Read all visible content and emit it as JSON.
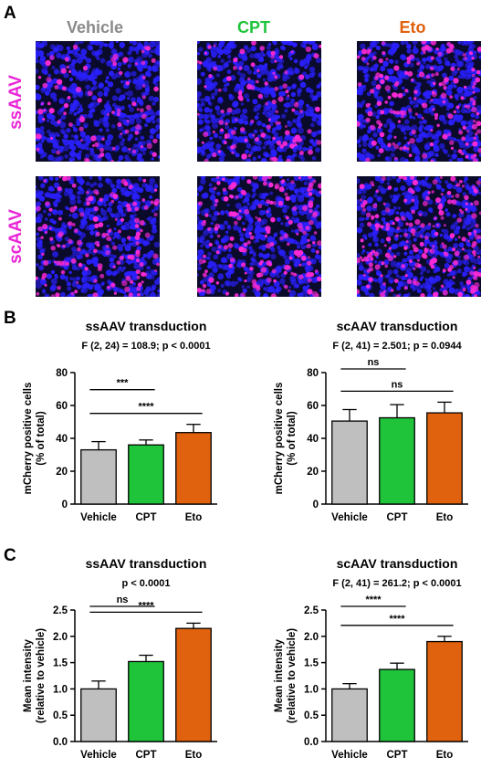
{
  "panels": {
    "A": {
      "letter": "A",
      "columns": [
        {
          "label": "Vehicle",
          "color": "#8a8a8a"
        },
        {
          "label": "CPT",
          "color": "#1fc43a"
        },
        {
          "label": "Eto",
          "color": "#e0610e"
        }
      ],
      "rows": [
        {
          "label": "ssAAV"
        },
        {
          "label": "scAAV"
        }
      ],
      "micrograph_colors": {
        "nuclei": "#2a20ff",
        "mcherry": "#ff2ad6",
        "background": "#0a0a2a"
      }
    },
    "B": {
      "letter": "B"
    },
    "C": {
      "letter": "C"
    }
  },
  "colors": {
    "Vehicle": "#bfbfbf",
    "CPT": "#1fc43a",
    "Eto": "#e0610e"
  },
  "chart_data": [
    {
      "id": "B-ss",
      "type": "bar",
      "title": "ssAAV transduction",
      "subtitle": "F (2, 24) = 108.9; p < 0.0001",
      "ylabel": [
        "mCherry positive cells",
        "(% of total)"
      ],
      "categories": [
        "Vehicle",
        "CPT",
        "Eto"
      ],
      "values": [
        33,
        36,
        43.5
      ],
      "errors": [
        5,
        3,
        5
      ],
      "ylim": [
        0,
        80
      ],
      "yticks": [
        0,
        20,
        40,
        60,
        80
      ],
      "comparisons": [
        {
          "from": 0,
          "to": 1,
          "label": "***"
        },
        {
          "from": 0,
          "to": 2,
          "label": "****"
        }
      ]
    },
    {
      "id": "B-sc",
      "type": "bar",
      "title": "scAAV transduction",
      "subtitle": "F (2, 41) = 2.501; p = 0.0944",
      "ylabel": [
        "mCherry positive cells",
        "(% of total)"
      ],
      "categories": [
        "Vehicle",
        "CPT",
        "Eto"
      ],
      "values": [
        50.5,
        52.5,
        55.5
      ],
      "errors": [
        7,
        8,
        6.5
      ],
      "ylim": [
        0,
        80
      ],
      "yticks": [
        0,
        20,
        40,
        60,
        80
      ],
      "comparisons": [
        {
          "from": 0,
          "to": 1,
          "label": "ns"
        },
        {
          "from": 0,
          "to": 2,
          "label": "ns"
        }
      ]
    },
    {
      "id": "C-ss",
      "type": "bar",
      "title": "ssAAV transduction",
      "subtitle": "p < 0.0001",
      "ylabel": [
        "Mean intensity",
        "(relative to vehicle)"
      ],
      "categories": [
        "Vehicle",
        "CPT",
        "Eto"
      ],
      "values": [
        1.0,
        1.52,
        2.15
      ],
      "errors": [
        0.15,
        0.12,
        0.1
      ],
      "ylim": [
        0,
        2.5
      ],
      "yticks": [
        "0.0",
        "0.5",
        "1.0",
        "1.5",
        "2.0",
        "2.5"
      ],
      "comparisons": [
        {
          "from": 0,
          "to": 1,
          "label": "ns"
        },
        {
          "from": 0,
          "to": 2,
          "label": "****"
        }
      ]
    },
    {
      "id": "C-sc",
      "type": "bar",
      "title": "scAAV transduction",
      "subtitle": "F (2, 41) = 261.2; p < 0.0001",
      "ylabel": [
        "Mean intensity",
        "(relative to vehicle)"
      ],
      "categories": [
        "Vehicle",
        "CPT",
        "Eto"
      ],
      "values": [
        1.0,
        1.37,
        1.9
      ],
      "errors": [
        0.1,
        0.12,
        0.1
      ],
      "ylim": [
        0,
        2.5
      ],
      "yticks": [
        "0.0",
        "0.5",
        "1.0",
        "1.5",
        "2.0",
        "2.5"
      ],
      "comparisons": [
        {
          "from": 0,
          "to": 1,
          "label": "****"
        },
        {
          "from": 0,
          "to": 2,
          "label": "****"
        }
      ]
    }
  ]
}
